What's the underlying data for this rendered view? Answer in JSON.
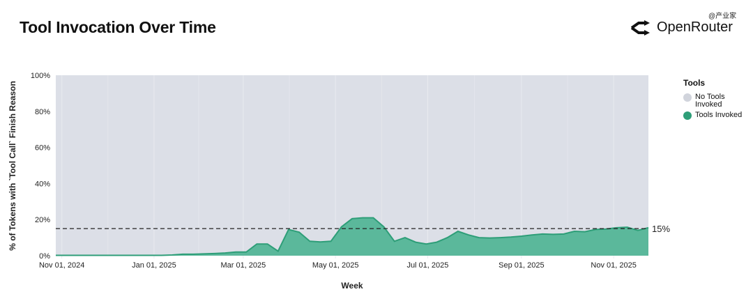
{
  "watermark": "@产业家",
  "brand": {
    "name": "OpenRouter",
    "icon": "openrouter-logo-icon"
  },
  "chart_data": {
    "type": "area",
    "title": "Tool Invocation Over Time",
    "xlabel": "Week",
    "ylabel": "% of Tokens with `Tool Call` Finish Reason",
    "xlim": [
      "2024-10-28",
      "2025-11-24"
    ],
    "ylim": [
      0,
      100
    ],
    "yticks": [
      0,
      20,
      40,
      60,
      80,
      100
    ],
    "ytick_labels": [
      "0%",
      "20%",
      "40%",
      "60%",
      "80%",
      "100%"
    ],
    "xticks": [
      "2024-11-01",
      "2025-01-01",
      "2025-03-01",
      "2025-05-01",
      "2025-07-01",
      "2025-09-01",
      "2025-11-01"
    ],
    "xtick_labels": [
      "Nov 01, 2024",
      "Jan 01, 2025",
      "Mar 01, 2025",
      "May 01, 2025",
      "Jul 01, 2025",
      "Sep 01, 2025",
      "Nov 01, 2025"
    ],
    "grid": true,
    "stacked": true,
    "legend": {
      "title": "Tools",
      "placement": "right"
    },
    "x": [
      "2024-10-28",
      "2024-11-04",
      "2024-11-11",
      "2024-11-18",
      "2024-11-25",
      "2024-12-02",
      "2024-12-09",
      "2024-12-16",
      "2024-12-23",
      "2024-12-30",
      "2025-01-06",
      "2025-01-13",
      "2025-01-20",
      "2025-01-27",
      "2025-02-03",
      "2025-02-10",
      "2025-02-17",
      "2025-02-24",
      "2025-03-03",
      "2025-03-10",
      "2025-03-17",
      "2025-03-24",
      "2025-03-31",
      "2025-04-07",
      "2025-04-14",
      "2025-04-21",
      "2025-04-28",
      "2025-05-05",
      "2025-05-12",
      "2025-05-19",
      "2025-05-26",
      "2025-06-02",
      "2025-06-09",
      "2025-06-16",
      "2025-06-23",
      "2025-06-30",
      "2025-07-07",
      "2025-07-14",
      "2025-07-21",
      "2025-07-28",
      "2025-08-04",
      "2025-08-11",
      "2025-08-18",
      "2025-08-25",
      "2025-09-01",
      "2025-09-08",
      "2025-09-15",
      "2025-09-22",
      "2025-09-29",
      "2025-10-06",
      "2025-10-13",
      "2025-10-20",
      "2025-10-27",
      "2025-11-03",
      "2025-11-10",
      "2025-11-17",
      "2025-11-24"
    ],
    "series": [
      {
        "name": "Tools Invoked",
        "color": "#5bb89b",
        "line_color": "#2e9e78",
        "values": [
          0.2,
          0.2,
          0.2,
          0.2,
          0.2,
          0.2,
          0.2,
          0.2,
          0.2,
          0.2,
          0.2,
          0.4,
          0.8,
          0.8,
          1.0,
          1.2,
          1.5,
          2.0,
          2.0,
          6.5,
          6.5,
          2.5,
          14.5,
          13.0,
          8.0,
          7.6,
          8.0,
          16.0,
          20.5,
          21.0,
          21.0,
          16.0,
          8.0,
          10.0,
          7.5,
          6.5,
          7.5,
          10.0,
          13.5,
          11.5,
          10.0,
          9.8,
          10.0,
          10.3,
          10.8,
          11.5,
          12.0,
          11.8,
          12.0,
          13.5,
          13.3,
          14.5,
          14.8,
          15.5,
          15.8,
          14.0,
          15.5
        ]
      },
      {
        "name": "No Tools Invoked",
        "color": "#dcdfe7",
        "values_note_free": true
      }
    ],
    "reference_line": {
      "value": 15,
      "label": "15%",
      "style": "dashed"
    }
  }
}
